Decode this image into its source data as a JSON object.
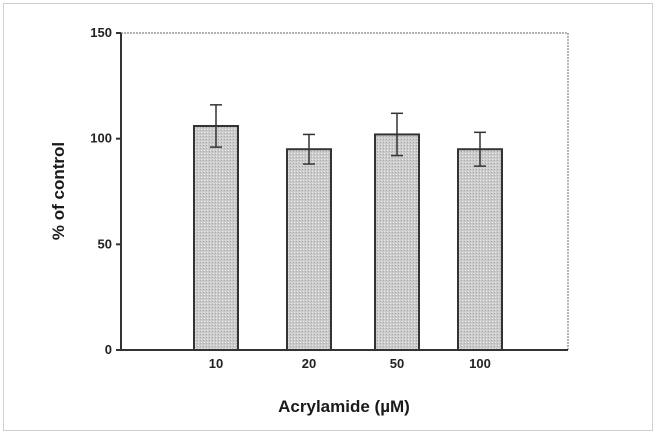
{
  "chart_data": {
    "type": "bar",
    "title": "",
    "xlabel": "Acrylamide (µM)",
    "ylabel": "% of control",
    "categories": [
      "10",
      "20",
      "50",
      "100"
    ],
    "values": [
      106,
      95,
      102,
      95
    ],
    "errors": [
      10,
      7,
      10,
      8
    ],
    "ylim": [
      0,
      150
    ],
    "yticks": [
      "0",
      "50",
      "100",
      "150"
    ],
    "grid": false,
    "legend": "none",
    "colors": {
      "bar_fill": "#c8c8c8",
      "bar_stroke": "#333333",
      "axis": "#333333",
      "plot_border": "#9a9a9a"
    }
  }
}
